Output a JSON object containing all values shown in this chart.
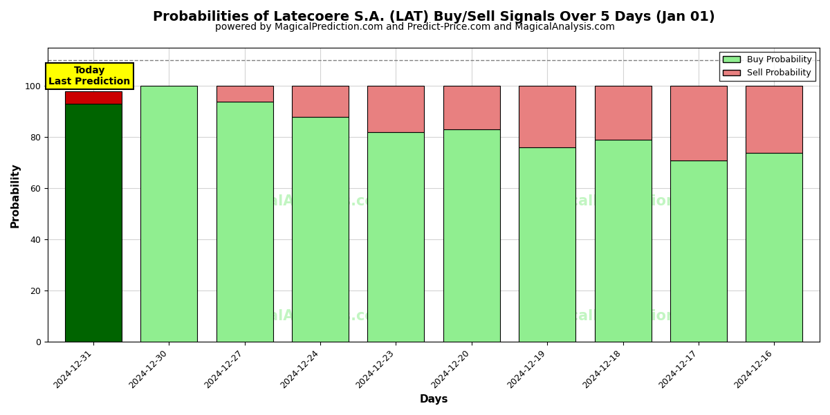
{
  "title": "Probabilities of Latecoere S.A. (LAT) Buy/Sell Signals Over 5 Days (Jan 01)",
  "subtitle": "powered by MagicalPrediction.com and Predict-Price.com and MagicalAnalysis.com",
  "xlabel": "Days",
  "ylabel": "Probability",
  "dates": [
    "2024-12-31",
    "2024-12-30",
    "2024-12-27",
    "2024-12-24",
    "2024-12-23",
    "2024-12-20",
    "2024-12-19",
    "2024-12-18",
    "2024-12-17",
    "2024-12-16"
  ],
  "buy_values": [
    93,
    100,
    94,
    88,
    82,
    83,
    76,
    79,
    71,
    74
  ],
  "sell_values": [
    5,
    0,
    6,
    12,
    18,
    17,
    24,
    21,
    29,
    26
  ],
  "today_bar_index": 0,
  "today_buy_color": "#006400",
  "today_sell_color": "#cc0000",
  "normal_buy_color": "#90EE90",
  "normal_sell_color": "#E88080",
  "bar_edge_color": "#000000",
  "ylim": [
    0,
    115
  ],
  "yticks": [
    0,
    20,
    40,
    60,
    80,
    100
  ],
  "dashed_line_y": 110,
  "today_label": "Today\nLast Prediction",
  "legend_buy": "Buy Probability",
  "legend_sell": "Sell Probability",
  "title_fontsize": 14,
  "subtitle_fontsize": 10,
  "label_fontsize": 11,
  "tick_fontsize": 9
}
